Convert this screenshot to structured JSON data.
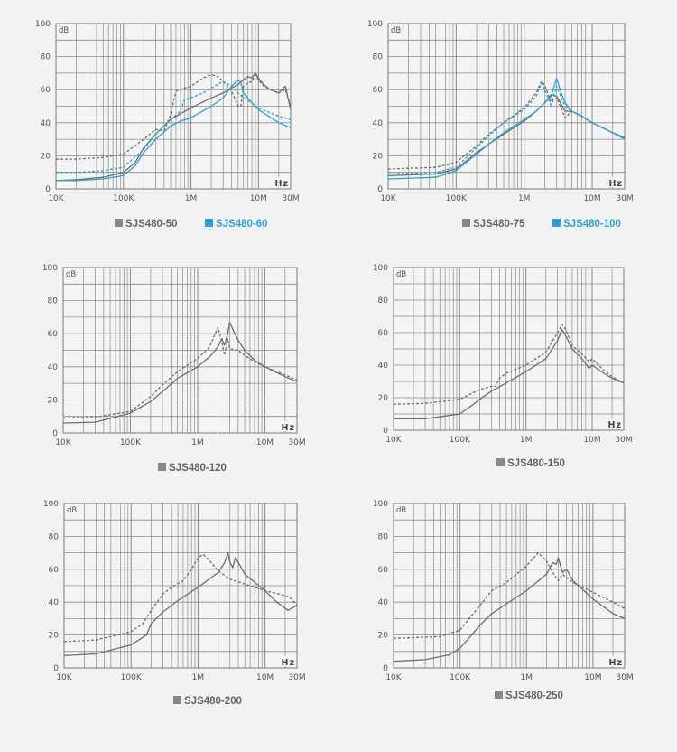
{
  "colors": {
    "background": "#f2f2f1",
    "grid": "#8a8a8a",
    "gray_series": "#6e6e6e",
    "blue_series": "#2aa3d6",
    "legend_gray": "#888888"
  },
  "chart_data": [
    {
      "type": "line",
      "title": "",
      "ylabel": "dB",
      "xlabel": "Hz",
      "x_scale": "log",
      "xlim": [
        10000,
        30000000
      ],
      "ylim": [
        0,
        100
      ],
      "xticks": [
        "10K",
        "100K",
        "1M",
        "10M",
        "30M"
      ],
      "yticks": [
        "0",
        "20",
        "40",
        "60",
        "80",
        "100"
      ],
      "grid": true,
      "legend": [
        {
          "label": "SJS480-50",
          "color": "#888888"
        },
        {
          "label": "SJS480-60",
          "color": "#2aa3d6"
        }
      ],
      "series": [
        {
          "name": "SJS480-50 dashed",
          "color": "#6e6e6e",
          "dash": true,
          "x": [
            10000,
            20000,
            50000,
            100000,
            200000,
            300000,
            400000,
            500000,
            600000,
            800000,
            1000000,
            1500000,
            2000000,
            2500000,
            3000000,
            4000000,
            5000000,
            5500000,
            6000000,
            7000000,
            8000000,
            9000000,
            10000000,
            12000000,
            15000000,
            20000000,
            25000000,
            30000000
          ],
          "y": [
            18,
            18,
            19,
            21,
            30,
            36,
            35,
            45,
            59,
            61,
            62,
            67,
            69,
            68,
            65,
            59,
            50,
            50,
            62,
            64,
            65,
            69,
            66,
            62,
            60,
            58,
            60,
            50
          ]
        },
        {
          "name": "SJS480-50 solid",
          "color": "#6e6e6e",
          "dash": false,
          "x": [
            10000,
            20000,
            50000,
            100000,
            150000,
            200000,
            300000,
            500000,
            1000000,
            2000000,
            3000000,
            4000000,
            5000000,
            6000000,
            7000000,
            8000000,
            9000000,
            10000000,
            12000000,
            15000000,
            20000000,
            25000000,
            30000000
          ],
          "y": [
            5,
            5.5,
            7,
            10,
            16,
            25,
            33,
            42,
            49,
            55,
            58,
            61,
            63,
            66,
            68,
            67,
            70,
            67,
            63,
            60,
            58,
            62,
            48
          ]
        },
        {
          "name": "SJS480-60 dashed",
          "color": "#2aa3d6",
          "dash": true,
          "x": [
            10000,
            20000,
            50000,
            100000,
            200000,
            300000,
            500000,
            700000,
            800000,
            1000000,
            1500000,
            2000000,
            3000000,
            4000000,
            5000000,
            6000000,
            8000000,
            10000000,
            20000000,
            30000000
          ],
          "y": [
            10,
            10,
            11,
            13,
            24,
            33,
            42,
            47,
            54,
            55,
            58,
            61,
            65,
            62,
            58,
            55,
            52,
            49,
            44,
            42
          ]
        },
        {
          "name": "SJS480-60 solid",
          "color": "#2aa3d6",
          "dash": false,
          "x": [
            10000,
            20000,
            50000,
            100000,
            150000,
            200000,
            300000,
            500000,
            700000,
            1000000,
            2000000,
            3000000,
            4000000,
            5000000,
            5500000,
            6000000,
            8000000,
            10000000,
            20000000,
            30000000
          ],
          "y": [
            5,
            5,
            6,
            8,
            14,
            22,
            30,
            38,
            41,
            43,
            50,
            55,
            62,
            66,
            64,
            58,
            52,
            48,
            40,
            37
          ]
        }
      ]
    },
    {
      "type": "line",
      "title": "",
      "ylabel": "dB",
      "xlabel": "Hz",
      "x_scale": "log",
      "xlim": [
        10000,
        30000000
      ],
      "ylim": [
        0,
        100
      ],
      "xticks": [
        "10K",
        "100K",
        "1M",
        "10M",
        "30M"
      ],
      "yticks": [
        "0",
        "20",
        "40",
        "60",
        "80",
        "100"
      ],
      "grid": true,
      "legend": [
        {
          "label": "SJS480-75",
          "color": "#888888"
        },
        {
          "label": "SJS480-100",
          "color": "#2aa3d6"
        }
      ],
      "series": [
        {
          "name": "SJS480-75 dashed",
          "color": "#6e6e6e",
          "dash": true,
          "x": [
            10000,
            50000,
            100000,
            200000,
            300000,
            500000,
            1000000,
            1500000,
            1800000,
            2000000,
            2500000,
            3000000,
            4000000,
            5000000,
            7000000,
            10000000,
            20000000,
            30000000
          ],
          "y": [
            12,
            13,
            16,
            26,
            33,
            40,
            49,
            58,
            65,
            63,
            52,
            55,
            43,
            47,
            44,
            40,
            34,
            31
          ]
        },
        {
          "name": "SJS480-75 solid",
          "color": "#6e6e6e",
          "dash": false,
          "x": [
            10000,
            50000,
            100000,
            200000,
            300000,
            500000,
            1000000,
            1500000,
            2000000,
            2500000,
            3000000,
            4000000,
            5000000,
            7000000,
            10000000,
            20000000,
            30000000
          ],
          "y": [
            8,
            9,
            12,
            22,
            27,
            33,
            41,
            47,
            52,
            57,
            56,
            47,
            47,
            44,
            40,
            34,
            31
          ]
        },
        {
          "name": "SJS480-100 dashed",
          "color": "#2aa3d6",
          "dash": true,
          "x": [
            10000,
            50000,
            100000,
            200000,
            300000,
            500000,
            1000000,
            1500000,
            1800000,
            2000000,
            2500000,
            2800000,
            3000000,
            3500000,
            4000000,
            5000000,
            7000000,
            10000000,
            20000000,
            30000000
          ],
          "y": [
            9,
            10,
            13,
            25,
            32,
            40,
            48,
            56,
            64,
            60,
            50,
            58,
            62,
            55,
            50,
            47,
            44,
            40,
            34,
            31
          ]
        },
        {
          "name": "SJS480-100 solid",
          "color": "#2aa3d6",
          "dash": false,
          "x": [
            10000,
            50000,
            100000,
            200000,
            300000,
            500000,
            1000000,
            1500000,
            2000000,
            2500000,
            3000000,
            3500000,
            4000000,
            5000000,
            7000000,
            10000000,
            20000000,
            30000000
          ],
          "y": [
            6,
            7,
            11,
            21,
            27,
            34,
            42,
            47,
            52,
            56,
            67,
            58,
            52,
            47,
            44,
            40,
            34,
            30
          ]
        }
      ]
    },
    {
      "type": "line",
      "title": "",
      "ylabel": "dB",
      "xlabel": "Hz",
      "x_scale": "log",
      "xlim": [
        10000,
        30000000
      ],
      "ylim": [
        0,
        100
      ],
      "xticks": [
        "10K",
        "100K",
        "1M",
        "10M",
        "30M"
      ],
      "yticks": [
        "0",
        "20",
        "40",
        "60",
        "80",
        "100"
      ],
      "grid": true,
      "legend": [
        {
          "label": "SJS480-120",
          "color": "#888888"
        }
      ],
      "series": [
        {
          "name": "SJS480-120 dashed",
          "color": "#6e6e6e",
          "dash": true,
          "x": [
            10000,
            30000,
            100000,
            200000,
            300000,
            500000,
            1000000,
            1500000,
            2000000,
            2300000,
            2500000,
            2800000,
            3000000,
            4000000,
            5000000,
            7000000,
            10000000,
            20000000,
            30000000
          ],
          "y": [
            9,
            9.5,
            13,
            22,
            29,
            37,
            45,
            52,
            64,
            55,
            47,
            57,
            51,
            50,
            47,
            43,
            40,
            35,
            32
          ]
        },
        {
          "name": "SJS480-120 solid",
          "color": "#6e6e6e",
          "dash": false,
          "x": [
            10000,
            30000,
            100000,
            200000,
            300000,
            500000,
            1000000,
            1500000,
            2000000,
            2300000,
            2500000,
            2800000,
            3000000,
            3300000,
            4000000,
            5000000,
            7000000,
            10000000,
            20000000,
            30000000
          ],
          "y": [
            6,
            6.5,
            12,
            19,
            25,
            33,
            40,
            46,
            52,
            57,
            53,
            60,
            67,
            63,
            56,
            50,
            44,
            40,
            34,
            31
          ]
        }
      ]
    },
    {
      "type": "line",
      "title": "",
      "ylabel": "dB",
      "xlabel": "Hz",
      "x_scale": "log",
      "xlim": [
        10000,
        30000000
      ],
      "ylim": [
        0,
        100
      ],
      "xticks": [
        "10K",
        "100K",
        "1M",
        "10M",
        "30M"
      ],
      "yticks": [
        "0",
        "20",
        "40",
        "60",
        "80",
        "100"
      ],
      "grid": true,
      "legend": [
        {
          "label": "SJS480-150",
          "color": "#888888"
        }
      ],
      "series": [
        {
          "name": "SJS480-150 dashed",
          "color": "#6e6e6e",
          "dash": true,
          "x": [
            10000,
            30000,
            100000,
            200000,
            300000,
            350000,
            400000,
            500000,
            1000000,
            2000000,
            3000000,
            3500000,
            4000000,
            5000000,
            7000000,
            9000000,
            10000000,
            15000000,
            20000000,
            30000000
          ],
          "y": [
            16,
            16.5,
            19,
            25,
            27,
            27,
            32,
            35,
            40,
            48,
            60,
            65,
            62,
            52,
            47,
            42,
            44,
            37,
            33,
            29
          ]
        },
        {
          "name": "SJS480-150 solid",
          "color": "#6e6e6e",
          "dash": false,
          "x": [
            10000,
            30000,
            100000,
            150000,
            200000,
            300000,
            500000,
            1000000,
            2000000,
            3000000,
            3500000,
            4000000,
            5000000,
            7000000,
            9000000,
            10000000,
            15000000,
            20000000,
            30000000
          ],
          "y": [
            7,
            7,
            10,
            15,
            19,
            24,
            29,
            36,
            44,
            55,
            62,
            58,
            50,
            44,
            38,
            40,
            35,
            32,
            29
          ]
        }
      ]
    },
    {
      "type": "line",
      "title": "",
      "ylabel": "dB",
      "xlabel": "Hz",
      "x_scale": "log",
      "xlim": [
        10000,
        30000000
      ],
      "ylim": [
        0,
        100
      ],
      "xticks": [
        "10K",
        "100K",
        "1M",
        "10M",
        "30M"
      ],
      "yticks": [
        "0",
        "20",
        "40",
        "60",
        "80",
        "100"
      ],
      "grid": true,
      "legend": [
        {
          "label": "SJS480-200",
          "color": "#888888"
        }
      ],
      "series": [
        {
          "name": "SJS480-200 dashed",
          "color": "#6e6e6e",
          "dash": true,
          "x": [
            10000,
            30000,
            100000,
            150000,
            200000,
            300000,
            400000,
            600000,
            800000,
            1000000,
            1200000,
            1500000,
            2000000,
            3000000,
            5000000,
            10000000,
            20000000,
            25000000,
            30000000
          ],
          "y": [
            16,
            17,
            22,
            27,
            35,
            45,
            49,
            53,
            60,
            67,
            69,
            65,
            59,
            54,
            51,
            47,
            44,
            42,
            38
          ]
        },
        {
          "name": "SJS480-200 solid",
          "color": "#6e6e6e",
          "dash": false,
          "x": [
            10000,
            30000,
            100000,
            170000,
            200000,
            300000,
            500000,
            1000000,
            2000000,
            2500000,
            2800000,
            3000000,
            3300000,
            3600000,
            4000000,
            5000000,
            10000000,
            15000000,
            22000000,
            30000000
          ],
          "y": [
            7.5,
            8.5,
            14,
            20,
            27,
            34,
            41,
            49,
            58,
            64,
            70,
            64,
            61,
            67,
            64,
            57,
            47,
            40,
            35,
            38
          ]
        }
      ]
    },
    {
      "type": "line",
      "title": "",
      "ylabel": "dB",
      "xlabel": "Hz",
      "x_scale": "log",
      "xlim": [
        10000,
        30000000
      ],
      "ylim": [
        0,
        100
      ],
      "xticks": [
        "10K",
        "100K",
        "1M",
        "10M",
        "30M"
      ],
      "yticks": [
        "0",
        "20",
        "40",
        "60",
        "80",
        "100"
      ],
      "grid": true,
      "legend": [
        {
          "label": "SJS480-250",
          "color": "#888888"
        }
      ],
      "series": [
        {
          "name": "SJS480-250 dashed",
          "color": "#6e6e6e",
          "dash": true,
          "x": [
            10000,
            50000,
            100000,
            200000,
            300000,
            500000,
            1000000,
            1500000,
            2000000,
            2500000,
            3000000,
            3500000,
            4000000,
            5000000,
            10000000,
            20000000,
            30000000
          ],
          "y": [
            18,
            19,
            23,
            38,
            47,
            52,
            62,
            70,
            65,
            58,
            53,
            57,
            55,
            52,
            46,
            40,
            36
          ]
        },
        {
          "name": "SJS480-250 solid",
          "color": "#6e6e6e",
          "dash": false,
          "x": [
            10000,
            30000,
            70000,
            100000,
            150000,
            200000,
            300000,
            500000,
            1000000,
            2000000,
            2500000,
            2800000,
            3000000,
            3200000,
            3500000,
            4000000,
            5000000,
            10000000,
            20000000,
            30000000
          ],
          "y": [
            4,
            5,
            8,
            12,
            20,
            26,
            33,
            39,
            47,
            57,
            64,
            63,
            67,
            63,
            58,
            60,
            53,
            42,
            33,
            30
          ]
        }
      ]
    }
  ]
}
